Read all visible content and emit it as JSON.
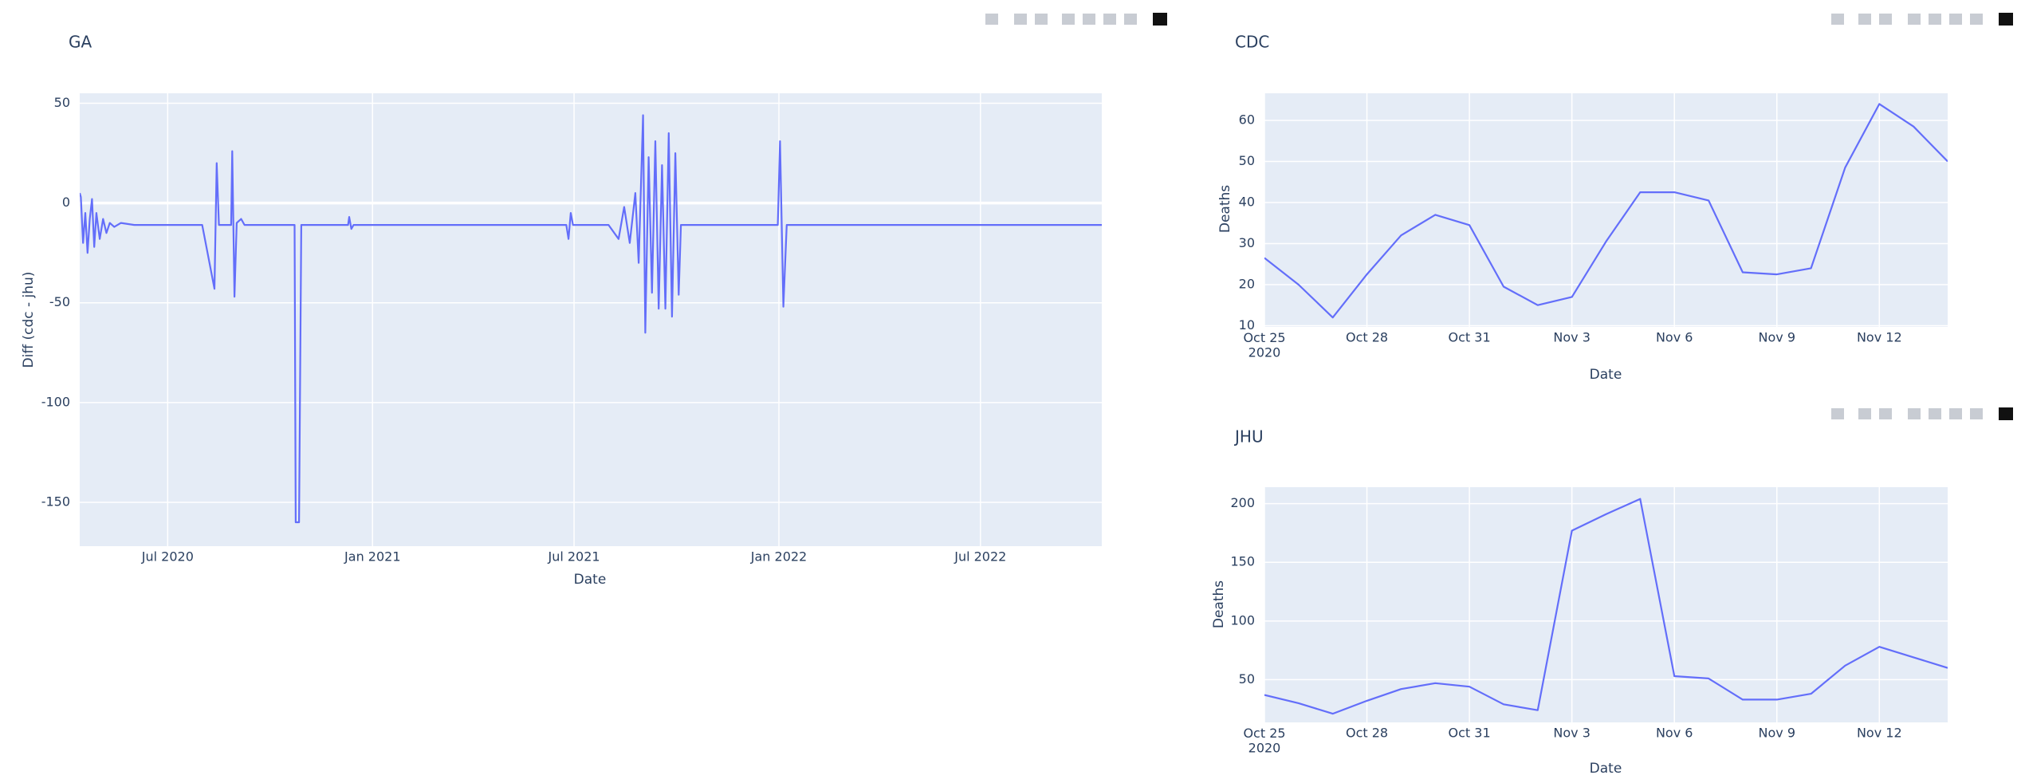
{
  "chart_data": [
    {
      "type": "line",
      "title": "GA",
      "x_label": "Date",
      "y_label": "Diff (cdc - jhu)",
      "color": "#636efa",
      "grid": true,
      "x": [
        "2020-04-13",
        "2020-04-14",
        "2020-04-16",
        "2020-04-18",
        "2020-04-20",
        "2020-04-22",
        "2020-04-24",
        "2020-04-26",
        "2020-04-28",
        "2020-05-01",
        "2020-05-04",
        "2020-05-07",
        "2020-05-10",
        "2020-05-14",
        "2020-05-20",
        "2020-06-01",
        "2020-08-01",
        "2020-08-12",
        "2020-08-14",
        "2020-08-16",
        "2020-08-27",
        "2020-08-28",
        "2020-08-30",
        "2020-09-01",
        "2020-09-05",
        "2020-09-08",
        "2020-10-23",
        "2020-10-24",
        "2020-10-27",
        "2020-10-29",
        "2020-12-10",
        "2020-12-11",
        "2020-12-13",
        "2020-12-15",
        "2021-06-24",
        "2021-06-26",
        "2021-06-28",
        "2021-06-30",
        "2021-08-01",
        "2021-08-10",
        "2021-08-15",
        "2021-08-20",
        "2021-08-25",
        "2021-08-28",
        "2021-09-01",
        "2021-09-03",
        "2021-09-06",
        "2021-09-09",
        "2021-09-12",
        "2021-09-15",
        "2021-09-18",
        "2021-09-21",
        "2021-09-24",
        "2021-09-27",
        "2021-09-30",
        "2021-10-03",
        "2021-10-05",
        "2021-10-15",
        "2021-12-31",
        "2022-01-02",
        "2022-01-05",
        "2022-01-08",
        "2022-10-18"
      ],
      "values": [
        5,
        3,
        -20,
        -5,
        -25,
        -8,
        2,
        -22,
        -5,
        -18,
        -8,
        -15,
        -10,
        -12,
        -10,
        -11,
        -11,
        -43,
        20,
        -11,
        -11,
        26,
        -47,
        -10,
        -8,
        -11,
        -11,
        -160,
        -160,
        -11,
        -11,
        -7,
        -13,
        -11,
        -11,
        -18,
        -5,
        -11,
        -11,
        -18,
        -2,
        -20,
        5,
        -30,
        44,
        -65,
        23,
        -45,
        31,
        -53,
        19,
        -53,
        35,
        -57,
        25,
        -46,
        -11,
        -11,
        -11,
        31,
        -52,
        -11,
        -11
      ],
      "xlim": [
        "2020-04-13",
        "2022-10-18"
      ],
      "xticks": [
        {
          "value": "2020-07-01",
          "label": "Jul 2020"
        },
        {
          "value": "2021-01-01",
          "label": "Jan 2021"
        },
        {
          "value": "2021-07-01",
          "label": "Jul 2021"
        },
        {
          "value": "2022-01-01",
          "label": "Jan 2022"
        },
        {
          "value": "2022-07-01",
          "label": "Jul 2022"
        }
      ],
      "ylim": [
        -172,
        55
      ],
      "yticks": [
        -150,
        -100,
        -50,
        0,
        50
      ]
    },
    {
      "type": "line",
      "title": "CDC",
      "x_label": "Date",
      "y_label": "Deaths",
      "color": "#636efa",
      "grid": true,
      "x": [
        "2020-10-25",
        "2020-10-26",
        "2020-10-27",
        "2020-10-28",
        "2020-10-29",
        "2020-10-30",
        "2020-10-31",
        "2020-11-01",
        "2020-11-02",
        "2020-11-03",
        "2020-11-04",
        "2020-11-05",
        "2020-11-06",
        "2020-11-07",
        "2020-11-08",
        "2020-11-09",
        "2020-11-10",
        "2020-11-11",
        "2020-11-12",
        "2020-11-13",
        "2020-11-14"
      ],
      "values": [
        26.5,
        20,
        12,
        22.5,
        32,
        37,
        34.5,
        19.5,
        15,
        17,
        30.5,
        42.5,
        42.5,
        40.5,
        23,
        22.5,
        24,
        48.5,
        64,
        58.5,
        50
      ],
      "xlim": [
        "2020-10-25",
        "2020-11-14"
      ],
      "xticks": [
        {
          "value": "2020-10-25",
          "label": "Oct 25\n2020"
        },
        {
          "value": "2020-10-28",
          "label": "Oct 28"
        },
        {
          "value": "2020-10-31",
          "label": "Oct 31"
        },
        {
          "value": "2020-11-03",
          "label": "Nov 3"
        },
        {
          "value": "2020-11-06",
          "label": "Nov 6"
        },
        {
          "value": "2020-11-09",
          "label": "Nov 9"
        },
        {
          "value": "2020-11-12",
          "label": "Nov 12"
        }
      ],
      "ylim": [
        9.7,
        66.6
      ],
      "yticks": [
        10,
        20,
        30,
        40,
        50,
        60
      ]
    },
    {
      "type": "line",
      "title": "JHU",
      "x_label": "Date",
      "y_label": "Deaths",
      "color": "#636efa",
      "grid": true,
      "x": [
        "2020-10-25",
        "2020-10-26",
        "2020-10-27",
        "2020-10-28",
        "2020-10-29",
        "2020-10-30",
        "2020-10-31",
        "2020-11-01",
        "2020-11-02",
        "2020-11-03",
        "2020-11-04",
        "2020-11-05",
        "2020-11-06",
        "2020-11-07",
        "2020-11-08",
        "2020-11-09",
        "2020-11-10",
        "2020-11-11",
        "2020-11-12",
        "2020-11-13",
        "2020-11-14"
      ],
      "values": [
        37,
        30,
        21,
        32,
        42,
        47,
        44,
        29,
        24,
        177,
        191,
        204,
        53,
        51,
        33,
        33,
        38,
        62,
        78,
        69,
        60
      ],
      "xlim": [
        "2020-10-25",
        "2020-11-14"
      ],
      "xticks": [
        {
          "value": "2020-10-25",
          "label": "Oct 25\n2020"
        },
        {
          "value": "2020-10-28",
          "label": "Oct 28"
        },
        {
          "value": "2020-10-31",
          "label": "Oct 31"
        },
        {
          "value": "2020-11-03",
          "label": "Nov 3"
        },
        {
          "value": "2020-11-06",
          "label": "Nov 6"
        },
        {
          "value": "2020-11-09",
          "label": "Nov 9"
        },
        {
          "value": "2020-11-12",
          "label": "Nov 12"
        }
      ],
      "ylim": [
        13.6,
        214
      ],
      "yticks": [
        50,
        100,
        150,
        200
      ]
    }
  ]
}
